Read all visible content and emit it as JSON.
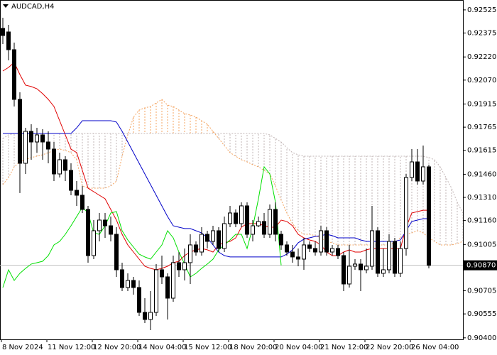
{
  "chart_data": {
    "type": "candlestick",
    "title": "AUDCAD,H4",
    "categories": [
      "8 Nov 2024",
      null,
      null,
      null,
      null,
      null,
      null,
      null,
      "11 Nov 12:00",
      null,
      null,
      null,
      null,
      null,
      null,
      null,
      "12 Nov 20:00",
      null,
      null,
      null,
      null,
      null,
      null,
      null,
      "14 Nov 04:00",
      null,
      null,
      null,
      null,
      null,
      null,
      null,
      "15 Nov 12:00",
      null,
      null,
      null,
      null,
      null,
      null,
      null,
      "18 Nov 20:00",
      null,
      null,
      null,
      null,
      null,
      null,
      null,
      "20 Nov 04:00",
      null,
      null,
      null,
      null,
      null,
      null,
      null,
      "21 Nov 12:00",
      null,
      null,
      null,
      null,
      null,
      null,
      null,
      "22 Nov 20:00",
      null,
      null,
      null,
      null,
      null,
      null,
      null,
      "26 Nov 04:00",
      null,
      null,
      null,
      null,
      null,
      null,
      null,
      null,
      null
    ],
    "open": [
      0.92405,
      0.92382,
      0.92267,
      0.91945,
      0.91531,
      0.91738,
      0.91669,
      0.91715,
      0.91669,
      0.91623,
      0.91462,
      0.91554,
      0.91485,
      0.91356,
      0.91324,
      0.91232,
      0.90933,
      0.91094,
      0.91163,
      0.91126,
      0.91071,
      0.90841,
      0.90726,
      0.90772,
      0.90726,
      0.90565,
      0.90519,
      0.90565,
      0.90841,
      0.90795,
      0.90657,
      0.90887,
      0.90841,
      0.90887,
      0.91002,
      0.90956,
      0.91071,
      0.91025,
      0.91094,
      0.90979,
      0.9114,
      0.91209,
      0.9114,
      0.91255,
      0.91071,
      0.91126,
      0.91154,
      0.91071,
      0.91232,
      0.91071,
      0.91002,
      0.90956,
      0.90924,
      0.9091,
      0.91002,
      0.90979,
      0.90956,
      0.91094,
      0.90956,
      0.90979,
      0.90933,
      0.90749,
      0.90864,
      0.90878,
      0.90841,
      0.90864,
      0.91094,
      0.90818,
      0.90841,
      0.91025,
      0.90818,
      0.90979,
      0.91439,
      0.9154,
      0.91416,
      0.91508,
      null,
      null,
      null,
      null,
      null,
      null
    ],
    "high": [
      0.92474,
      0.92428,
      0.92313,
      0.91991,
      0.91761,
      0.91784,
      0.91761,
      0.91752,
      0.91738,
      0.91669,
      0.916,
      0.91577,
      0.91531,
      0.91416,
      0.91384,
      0.91255,
      0.91163,
      0.91209,
      0.91209,
      0.91186,
      0.91117,
      0.90887,
      0.90818,
      0.90795,
      0.90772,
      0.90657,
      0.90703,
      0.90878,
      0.90933,
      0.90818,
      0.90933,
      0.90956,
      0.90979,
      0.91071,
      0.91025,
      0.91117,
      0.91094,
      0.91126,
      0.91117,
      0.91186,
      0.91255,
      0.91232,
      0.91278,
      0.91278,
      0.91163,
      0.91186,
      0.91209,
      0.91264,
      0.91278,
      0.91094,
      0.91025,
      0.91002,
      0.90979,
      0.91048,
      0.91025,
      0.91025,
      0.91126,
      0.91117,
      0.91002,
      0.91002,
      0.90956,
      0.91002,
      0.9091,
      0.9091,
      0.90979,
      0.91255,
      0.91117,
      0.90979,
      0.91071,
      0.91048,
      0.91025,
      0.91462,
      0.91623,
      0.91623,
      0.91646,
      0.91522,
      null,
      null,
      null,
      null,
      null,
      null
    ],
    "low": [
      0.92304,
      0.92198,
      0.91899,
      0.91338,
      0.91462,
      0.91554,
      0.916,
      0.91554,
      0.91531,
      0.91416,
      0.91439,
      0.91416,
      0.91324,
      0.91255,
      0.91209,
      0.90887,
      0.9091,
      0.91025,
      0.91048,
      0.91025,
      0.90795,
      0.90703,
      0.90703,
      0.9068,
      0.90542,
      0.90496,
      0.9045,
      0.90542,
      0.90749,
      0.90519,
      0.90634,
      0.90795,
      0.90772,
      0.90749,
      0.90933,
      0.90933,
      0.90979,
      0.91002,
      0.90956,
      0.90956,
      0.91117,
      0.91117,
      0.91117,
      0.91048,
      0.91025,
      0.91117,
      0.91048,
      0.91048,
      0.91025,
      0.9097,
      0.90933,
      0.90887,
      0.90864,
      0.90841,
      0.90956,
      0.90933,
      0.90933,
      0.90933,
      0.90933,
      0.9091,
      0.90703,
      0.90726,
      0.90841,
      0.90703,
      0.90818,
      0.90841,
      0.90795,
      0.90795,
      0.90818,
      0.90795,
      0.90795,
      0.90933,
      0.91416,
      0.91393,
      0.91393,
      0.9085,
      null,
      null,
      null,
      null,
      null,
      null
    ],
    "close": [
      0.92359,
      0.92267,
      0.91945,
      0.91531,
      0.91738,
      0.91669,
      0.91715,
      0.91669,
      0.91623,
      0.91462,
      0.91554,
      0.91485,
      0.91356,
      0.91324,
      0.91232,
      0.90933,
      0.91094,
      0.91163,
      0.91126,
      0.91071,
      0.90841,
      0.90726,
      0.90772,
      0.90726,
      0.90565,
      0.90519,
      0.90565,
      0.90841,
      0.90795,
      0.90657,
      0.90887,
      0.90841,
      0.90887,
      0.91002,
      0.90956,
      0.91071,
      0.91025,
      0.91094,
      0.90979,
      0.9114,
      0.91209,
      0.9114,
      0.91255,
      0.91071,
      0.91126,
      0.91154,
      0.91071,
      0.91232,
      0.91071,
      0.91002,
      0.90956,
      0.90924,
      0.9091,
      0.91002,
      0.90979,
      0.90956,
      0.91094,
      0.90956,
      0.90979,
      0.90933,
      0.90749,
      0.90864,
      0.90878,
      0.90841,
      0.90864,
      0.91094,
      0.90818,
      0.90841,
      0.91025,
      0.90818,
      0.90979,
      0.91439,
      0.9154,
      0.91416,
      0.91508,
      0.9087,
      null,
      null,
      null,
      null,
      null,
      null
    ],
    "up_color": "#ffffff",
    "down_color": "#000000",
    "lines": [
      {
        "color": "#e00000",
        "values": [
          0.92129,
          0.92152,
          0.92184,
          0.92106,
          0.92037,
          0.92028,
          0.92014,
          0.91982,
          0.91945,
          0.91899,
          0.91807,
          0.91715,
          0.91623,
          0.916,
          0.91485,
          0.9137,
          0.91347,
          0.91324,
          0.91301,
          0.91232,
          0.91163,
          0.91071,
          0.91002,
          0.90956,
          0.9091,
          0.90864,
          0.9085,
          0.90841,
          0.9085,
          0.90864,
          0.90887,
          0.90896,
          0.90933,
          0.90956,
          0.9097,
          0.90979,
          0.9097,
          0.90956,
          0.91002,
          0.91016,
          0.91025,
          0.91048,
          0.91117,
          0.9114,
          0.9114,
          0.9114,
          0.91126,
          0.91117,
          0.91117,
          0.91163,
          0.91154,
          0.91126,
          0.91071,
          0.91048,
          0.91034,
          0.91025,
          0.91002,
          0.90956,
          0.90933,
          0.90933,
          0.90956,
          0.9097,
          0.90956,
          0.90956,
          0.9097,
          0.90979,
          0.90979,
          0.90979,
          0.90979,
          0.90979,
          0.90979,
          0.91117,
          0.91209,
          0.91218,
          0.91227,
          0.91227,
          null,
          null,
          null,
          null,
          null,
          null
        ]
      },
      {
        "color": "#0000c8",
        "values": [
          0.91724,
          0.91724,
          0.91724,
          0.91724,
          0.91724,
          0.91724,
          0.91724,
          0.91724,
          0.91724,
          0.91724,
          0.91724,
          0.91724,
          0.91724,
          0.91761,
          0.91807,
          0.91807,
          0.91807,
          0.91807,
          0.91807,
          0.91807,
          0.91798,
          0.91738,
          0.91669,
          0.916,
          0.91531,
          0.91462,
          0.91393,
          0.91324,
          0.91255,
          0.91186,
          0.91126,
          0.91117,
          0.91108,
          0.91108,
          0.91094,
          0.9108,
          0.91048,
          0.91002,
          0.90956,
          0.90933,
          0.90924,
          0.90924,
          0.90924,
          0.90924,
          0.90924,
          0.90924,
          0.90924,
          0.90924,
          0.90924,
          0.90924,
          0.90942,
          0.9097,
          0.91016,
          0.91039,
          0.91048,
          0.91057,
          0.91062,
          0.91071,
          0.91062,
          0.91048,
          0.91048,
          0.91048,
          0.91048,
          0.91034,
          0.91025,
          0.91025,
          0.91025,
          0.91025,
          0.91025,
          0.91025,
          0.91034,
          0.91094,
          0.91154,
          0.91163,
          0.91172,
          0.91172,
          null,
          null,
          null,
          null,
          null,
          null
        ]
      },
      {
        "color": "#00e000",
        "values": [
          0.90726,
          0.90841,
          0.90772,
          0.90818,
          0.9085,
          0.90878,
          0.90887,
          0.90896,
          0.90933,
          0.91002,
          0.91025,
          0.91071,
          0.91126,
          0.91186,
          0.91246,
          0.91209,
          0.9108,
          0.91071,
          0.91126,
          0.91209,
          0.91218,
          0.91094,
          0.91034,
          0.90988,
          0.90942,
          0.90924,
          0.9091,
          0.90956,
          0.91002,
          0.91094,
          0.91048,
          0.90956,
          0.90878,
          0.90795,
          0.90818,
          0.9085,
          0.90878,
          0.9091,
          0.9097,
          0.91002,
          0.91034,
          0.91071,
          0.91071,
          0.90979,
          0.91117,
          0.91301,
          0.91508,
          0.91462,
          0.91278,
          0.9087,
          null,
          null,
          null,
          null,
          null,
          null,
          null,
          null,
          null,
          null,
          null,
          null,
          null,
          null,
          null,
          null,
          null,
          null,
          null,
          null,
          null,
          null,
          null,
          null,
          null,
          null,
          null,
          null,
          null,
          null,
          null,
          null
        ]
      }
    ],
    "cloud": {
      "span_a": {
        "color": "#f4a460",
        "values": [
          0.91393,
          0.91439,
          0.91508,
          0.9154,
          0.91554,
          0.91568,
          0.91577,
          0.91586,
          0.916,
          0.91614,
          0.91623,
          0.91614,
          0.916,
          0.91554,
          0.91384,
          0.9137,
          0.9137,
          0.9137,
          0.9137,
          0.91384,
          0.91416,
          0.91577,
          0.91715,
          0.9183,
          0.91876,
          0.9189,
          0.91899,
          0.91922,
          0.91945,
          0.91908,
          0.91899,
          0.91876,
          0.91853,
          0.91844,
          0.9183,
          0.91807,
          0.91784,
          0.91738,
          0.91692,
          0.91646,
          0.916,
          0.91577,
          0.91554,
          0.9154,
          0.91522,
          0.91508,
          0.91485,
          0.91462,
          0.91384,
          0.91292,
          0.91209,
          0.9114,
          0.91094,
          0.91071,
          0.91071,
          0.91062,
          0.91048,
          0.91025,
          0.91016,
          0.91002,
          0.91002,
          0.91002,
          0.91002,
          0.91002,
          0.91002,
          0.91002,
          0.91002,
          0.91002,
          0.91002,
          0.91016,
          0.91048,
          0.91071,
          0.9108,
          0.91094,
          0.9108,
          0.91048,
          0.91025,
          0.91002,
          0.91002,
          0.91002,
          0.91011,
          0.91025
        ]
      },
      "span_b": {
        "color": "#c0b4b4",
        "values": [
          0.91692,
          0.91715,
          0.91724,
          0.91724,
          0.91724,
          0.91724,
          0.91724,
          0.91724,
          0.91724,
          0.91724,
          0.91724,
          0.91724,
          0.91724,
          0.91724,
          0.91724,
          0.91724,
          0.91724,
          0.91724,
          0.91724,
          0.91724,
          0.91724,
          0.91724,
          0.91724,
          0.91724,
          0.91724,
          0.91724,
          0.91724,
          0.91724,
          0.91724,
          0.91724,
          0.91724,
          0.91724,
          0.91724,
          0.91724,
          0.91724,
          0.91724,
          0.91724,
          0.91724,
          0.91724,
          0.91724,
          0.91724,
          0.91724,
          0.91724,
          0.91724,
          0.91724,
          0.91724,
          0.91724,
          0.91715,
          0.91692,
          0.91669,
          0.91632,
          0.916,
          0.91586,
          0.91577,
          0.91577,
          0.91577,
          0.91577,
          0.91577,
          0.91577,
          0.91577,
          0.91577,
          0.91577,
          0.91577,
          0.91577,
          0.91577,
          0.91577,
          0.91577,
          0.91577,
          0.91577,
          0.91577,
          0.91577,
          0.91577,
          0.91577,
          0.91577,
          0.91577,
          0.91568,
          0.91554,
          0.91508,
          0.91439,
          0.9137,
          0.91278,
          0.91209
        ]
      }
    },
    "ylim": [
      0.9039,
      0.92589
    ],
    "yticks": [
      {
        "value": 0.92525,
        "label": "0.92525"
      },
      {
        "value": 0.92375,
        "label": "0.92375"
      },
      {
        "value": 0.9222,
        "label": "0.92220"
      },
      {
        "value": 0.9207,
        "label": "0.92070"
      },
      {
        "value": 0.91915,
        "label": "0.91915"
      },
      {
        "value": 0.91765,
        "label": "0.91765"
      },
      {
        "value": 0.91615,
        "label": "0.91615"
      },
      {
        "value": 0.9146,
        "label": "0.91460"
      },
      {
        "value": 0.9131,
        "label": "0.91310"
      },
      {
        "value": 0.9116,
        "label": "0.91160"
      },
      {
        "value": 0.91005,
        "label": "0.91005"
      },
      {
        "value": 0.90705,
        "label": "0.90705"
      },
      {
        "value": 0.90555,
        "label": "0.90555"
      },
      {
        "value": 0.904,
        "label": "0.90400"
      }
    ],
    "last_price": {
      "value": 0.9087,
      "label": "0.90870"
    }
  }
}
